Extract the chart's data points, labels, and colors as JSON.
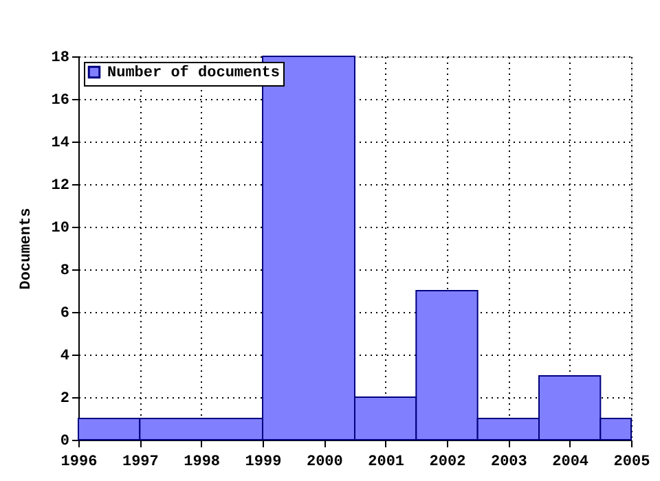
{
  "chart_data": {
    "type": "histogram",
    "ylabel": "Documents",
    "bins": [
      1996,
      1997,
      1999,
      2000.5,
      2001.5,
      2002.5,
      2003.5,
      2004.5,
      2005
    ],
    "series": [
      {
        "name": "Number of documents",
        "color": "#8080ff",
        "values": [
          1,
          1,
          18,
          2,
          7,
          1,
          3,
          1
        ]
      }
    ],
    "xlim": [
      1996,
      2005
    ],
    "xticks": [
      1996,
      1997,
      1998,
      1999,
      2000,
      2001,
      2002,
      2003,
      2004,
      2005
    ],
    "ylim": [
      0,
      18
    ],
    "yticks": [
      0,
      2,
      4,
      6,
      8,
      10,
      12,
      14,
      16,
      18
    ],
    "grid": true,
    "legend": "top left"
  }
}
